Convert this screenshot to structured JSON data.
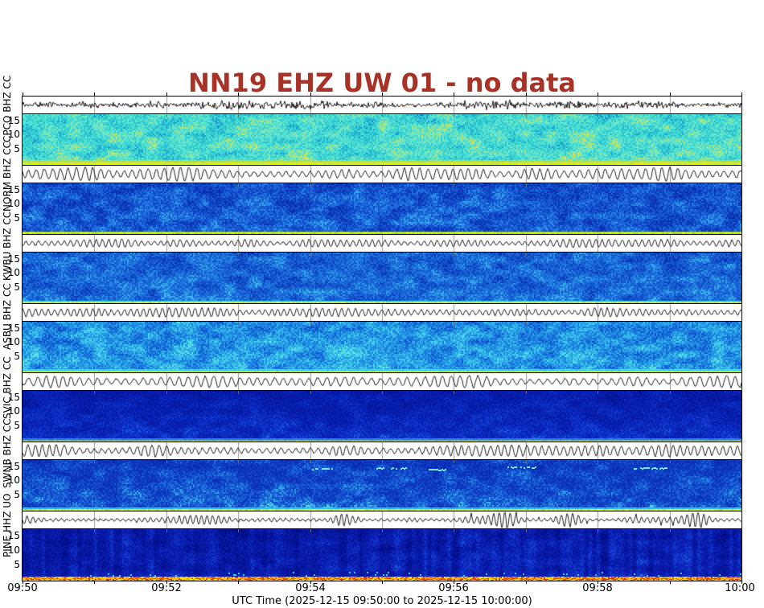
{
  "title": {
    "text": "NN19 EHZ UW 01 - no data",
    "color": "#a93226"
  },
  "chart_data": {
    "type": "heatmap",
    "description": "Stacked seismic webicorder panels: black waveform trace strip above a frequency spectrogram for each station",
    "title": "NN19 EHZ UW 01 - no data",
    "xlabel": "UTC Time (2025-12-15 09:50:00 to 2025-12-15 10:00:00)",
    "x_ticks": [
      "09:50",
      "09:52",
      "09:54",
      "09:56",
      "09:58",
      "10:00"
    ],
    "time_range": {
      "start": "2025-12-15 09:50:00",
      "end": "2025-12-15 10:00:00"
    },
    "x_minutes_total": 10,
    "y_ticks": [
      "15",
      "10",
      "5"
    ],
    "legend_position": "none",
    "grid": "minute ticks on waveform strips",
    "panels": [
      {
        "label": "CPCO BHZ CC",
        "station": "CPCO",
        "channel": "BHZ",
        "network": "CC",
        "y_ticks": [
          "15",
          "10",
          "5"
        ],
        "intensity": "bright cyan background, yellow-green speckle, strong low-frequency band",
        "spec": {
          "seed": 11,
          "base": 0.56,
          "spread": 0.85,
          "bottom_bias": 0.1,
          "stripes": 0,
          "stops": [
            [
              0.0,
              "#1050b8"
            ],
            [
              0.18,
              "#1e8cd0"
            ],
            [
              0.38,
              "#2cc4cf"
            ],
            [
              0.58,
              "#44dcd4"
            ],
            [
              0.78,
              "#72e6c8"
            ],
            [
              0.9,
              "#abe272"
            ],
            [
              1.0,
              "#d8e44a"
            ]
          ],
          "bottom_rows": [
            [
              "#b8dc3c",
              2
            ],
            [
              "#d8e626",
              2
            ],
            [
              "#f0f00a",
              2
            ]
          ]
        },
        "wave": {
          "kind": "noise",
          "amp": 5.0,
          "period": 3,
          "noise": 1.0,
          "seed": 211
        }
      },
      {
        "label": "NORM BHZ CC",
        "station": "NORM",
        "channel": "BHZ",
        "network": "CC",
        "y_ticks": [
          "15",
          "10",
          "5"
        ],
        "intensity": "medium blue with lighter mottling, thin yellow-green base line",
        "spec": {
          "seed": 22,
          "base": 0.44,
          "spread": 0.85,
          "bottom_bias": 0.07,
          "stripes": 0,
          "stops": [
            [
              0.0,
              "#07219c"
            ],
            [
              0.35,
              "#0f46c6"
            ],
            [
              0.62,
              "#1e6ede"
            ],
            [
              0.85,
              "#36a4e8"
            ],
            [
              1.0,
              "#4fd2ec"
            ]
          ],
          "bottom_rows": [
            [
              "#a8d83a",
              1
            ],
            [
              "#e2ec18",
              2
            ]
          ]
        },
        "wave": {
          "kind": "sin",
          "amp": 6.0,
          "period": 10,
          "noise": 1.6,
          "seed": 222
        }
      },
      {
        "label": "KWBU BHZ CC",
        "station": "KWBU",
        "channel": "BHZ",
        "network": "CC",
        "y_ticks": [
          "15",
          "10",
          "5"
        ],
        "intensity": "medium blue with cyan flecks, cyan+yellow base lines",
        "spec": {
          "seed": 33,
          "base": 0.46,
          "spread": 0.85,
          "bottom_bias": 0.09,
          "stripes": 0,
          "stops": [
            [
              0.0,
              "#07239f"
            ],
            [
              0.35,
              "#1150ca"
            ],
            [
              0.62,
              "#1f74de"
            ],
            [
              0.85,
              "#36aae8"
            ],
            [
              1.0,
              "#4fd6ec"
            ]
          ],
          "bottom_rows": [
            [
              "#3ccfe0",
              1
            ],
            [
              "#e8ec12",
              2
            ]
          ]
        },
        "wave": {
          "kind": "sin",
          "amp": 3.6,
          "period": 8,
          "noise": 1.4,
          "seed": 233
        }
      },
      {
        "label": "ASBU BHZ CC",
        "station": "ASBU",
        "channel": "BHZ",
        "network": "CC",
        "y_ticks": [
          "15",
          "10",
          "5"
        ],
        "intensity": "brighter blue-cyan mottled field, speckled cyan/yellow base",
        "spec": {
          "seed": 44,
          "base": 0.52,
          "spread": 0.9,
          "bottom_bias": 0.1,
          "stripes": 0,
          "stops": [
            [
              0.0,
              "#0935b4"
            ],
            [
              0.3,
              "#1565d6"
            ],
            [
              0.55,
              "#2292e4"
            ],
            [
              0.8,
              "#39c2ea"
            ],
            [
              1.0,
              "#62e4e0"
            ]
          ],
          "bottom_rows": [
            [
              "#44d6d6",
              2
            ],
            [
              "#cfe238",
              1
            ],
            [
              "#e8ec16",
              1
            ]
          ]
        },
        "wave": {
          "kind": "sin",
          "amp": 3.8,
          "period": 8,
          "noise": 1.6,
          "seed": 244
        }
      },
      {
        "label": "SVIC BHZ CC",
        "station": "SVIC",
        "channel": "BHZ",
        "network": "CC",
        "y_ticks": [
          "15",
          "10",
          "5"
        ],
        "intensity": "dark navy, nearly uniform, brighter blue glow near bottom",
        "spec": {
          "seed": 55,
          "base": 0.4,
          "spread": 0.6,
          "bottom_bias": 0.32,
          "stripes": 0,
          "stops": [
            [
              0.0,
              "#030f86"
            ],
            [
              0.5,
              "#0820b2"
            ],
            [
              0.78,
              "#0e36cc"
            ],
            [
              0.92,
              "#1a56da"
            ],
            [
              1.0,
              "#2f8ce4"
            ]
          ],
          "bottom_rows": [
            [
              "#2f86dc",
              2
            ],
            [
              "#3ccfd8",
              1
            ],
            [
              "#cde040",
              1
            ]
          ]
        },
        "wave": {
          "kind": "sin",
          "amp": 5.2,
          "period": 11,
          "noise": 1.8,
          "seed": 255
        }
      },
      {
        "label": "SWNB BHZ CC",
        "station": "SWNB",
        "channel": "BHZ",
        "network": "CC",
        "y_ticks": [
          "15",
          "10",
          "5"
        ],
        "intensity": "dark-medium blue, horizontal cyan streaks near top, cyan lower half, yellow base line",
        "spec": {
          "seed": 66,
          "base": 0.42,
          "spread": 0.8,
          "bottom_bias": 0.24,
          "stripes": 0,
          "stops": [
            [
              0.0,
              "#0722a8"
            ],
            [
              0.45,
              "#0f3ec4"
            ],
            [
              0.72,
              "#1c6ada"
            ],
            [
              0.9,
              "#33a6e6"
            ],
            [
              1.0,
              "#55dcee"
            ]
          ],
          "streaks": [
            [
              0.4,
              0.035,
              0.16
            ],
            [
              0.49,
              0.05,
              0.14
            ],
            [
              0.56,
              0.03,
              0.17
            ],
            [
              0.67,
              0.045,
              0.13
            ],
            [
              0.85,
              0.05,
              0.15
            ]
          ],
          "streak_color": "#7ae6f0",
          "bottom_rows": [
            [
              "#3ccfe0",
              2
            ],
            [
              "#e8ec12",
              2
            ]
          ]
        },
        "wave": {
          "kind": "sin",
          "amp": 5.2,
          "period": 9,
          "noise": 1.8,
          "seed": 266
        }
      },
      {
        "label": "PINE HHZ UO",
        "station": "PINE",
        "channel": "HHZ",
        "network": "UO",
        "y_ticks": [
          "15",
          "10",
          "5"
        ],
        "intensity": "dark navy with vertical stripe texture, hot orange/red/yellow band at base",
        "spec": {
          "seed": 77,
          "base": 0.38,
          "spread": 0.65,
          "bottom_bias": 0.1,
          "stripes": 0.2,
          "stops": [
            [
              0.0,
              "#030c84"
            ],
            [
              0.5,
              "#0a1fb2"
            ],
            [
              0.78,
              "#1238cc"
            ],
            [
              0.93,
              "#1e5ad8"
            ],
            [
              1.0,
              "#3488e4"
            ]
          ],
          "bottom_speckle": {
            "rows": 5,
            "colors": [
              "#e87414",
              "#d4380e",
              "#f2b813",
              "#f0ee12",
              "#e85a10",
              "#f2c618"
            ]
          },
          "fleck_color": "#35c8e0"
        },
        "wave": {
          "kind": "burst",
          "amp": 3.4,
          "period": 7,
          "noise": 1.6,
          "burst": 2.6,
          "seed": 277
        }
      }
    ]
  }
}
